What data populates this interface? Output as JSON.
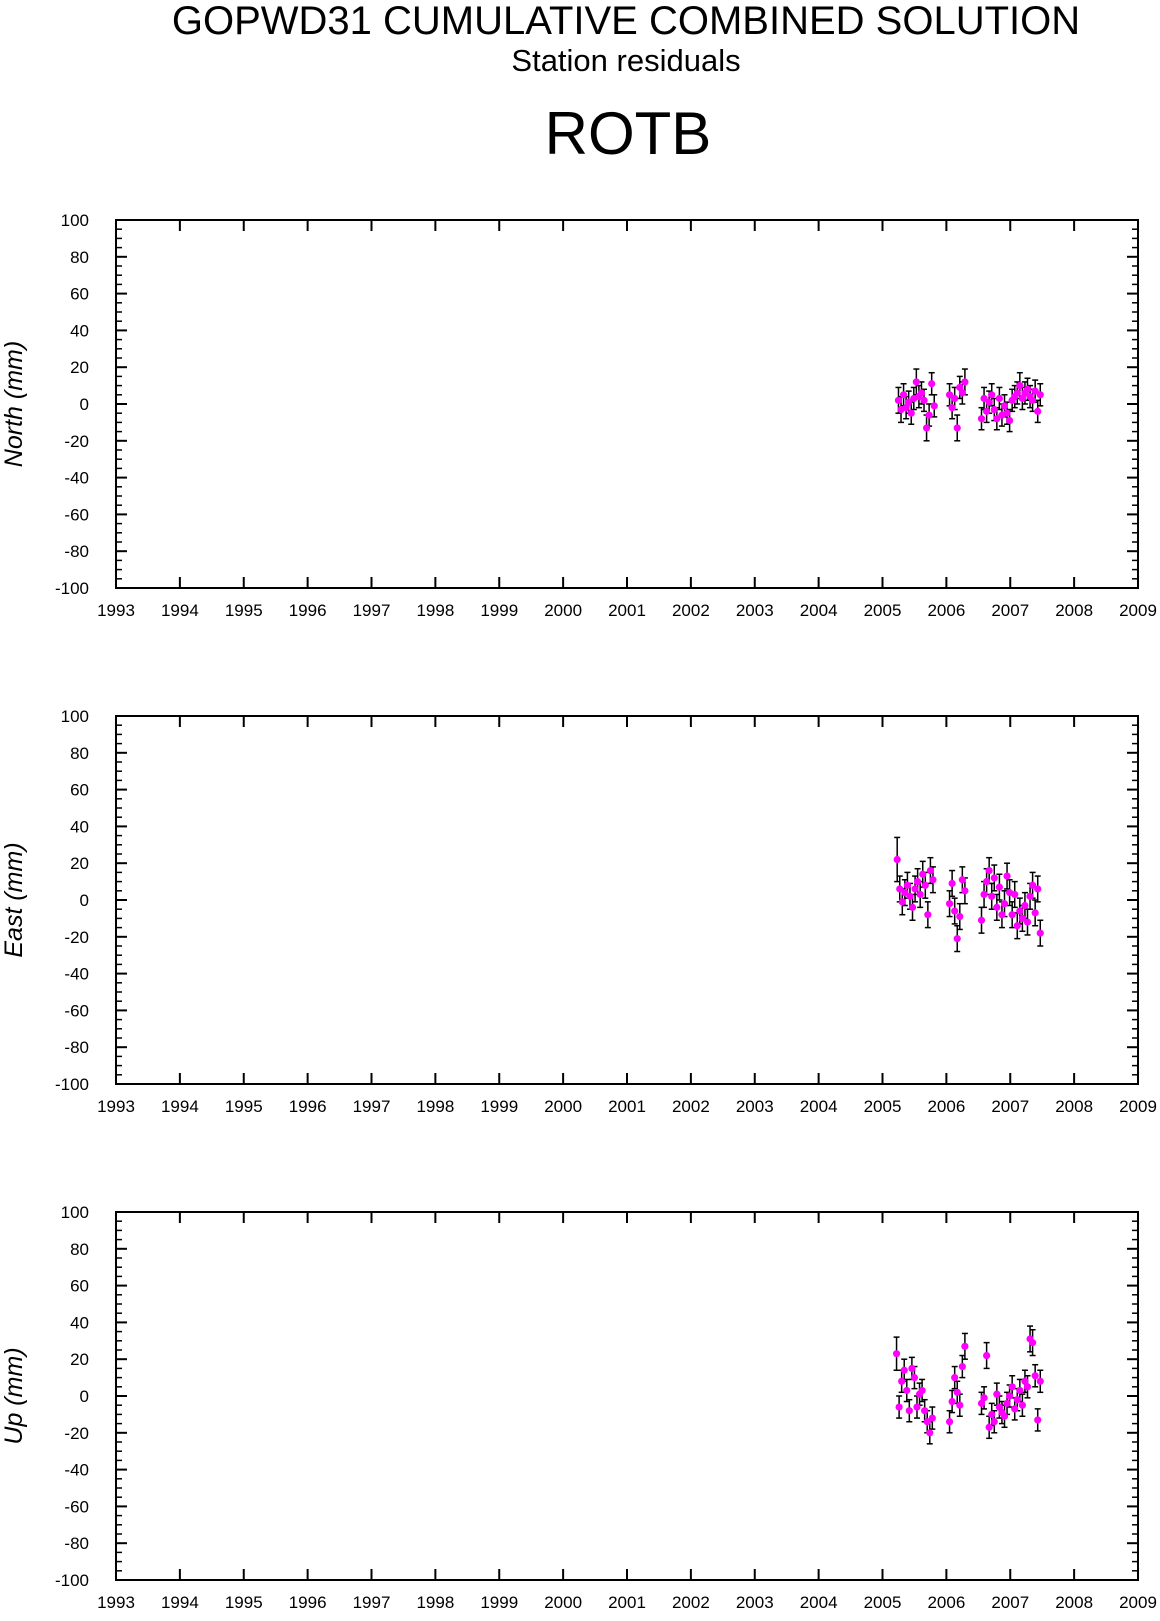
{
  "header": {
    "title": "GOPWD31 CUMULATIVE COMBINED SOLUTION",
    "subtitle": "Station residuals",
    "station": "ROTB"
  },
  "colors": {
    "point": "#ff00ff",
    "errorbar": "#000000",
    "axis": "#000000"
  },
  "chart_data": [
    {
      "type": "scatter",
      "name": "north",
      "ylabel": "North (mm)",
      "xlim": [
        1993,
        2009
      ],
      "ylim": [
        -100,
        100
      ],
      "xticks": [
        1993,
        1994,
        1995,
        1996,
        1997,
        1998,
        1999,
        2000,
        2001,
        2002,
        2003,
        2004,
        2005,
        2006,
        2007,
        2008,
        2009
      ],
      "yticks": [
        100,
        80,
        60,
        40,
        20,
        0,
        -20,
        -40,
        -60,
        -80,
        -100
      ],
      "grid": false,
      "points": [
        [
          2005.25,
          2,
          7
        ],
        [
          2005.29,
          -3,
          7
        ],
        [
          2005.33,
          5,
          6
        ],
        [
          2005.37,
          -2,
          6
        ],
        [
          2005.41,
          1,
          6
        ],
        [
          2005.45,
          -5,
          6
        ],
        [
          2005.49,
          3,
          6
        ],
        [
          2005.53,
          12,
          7
        ],
        [
          2005.57,
          4,
          6
        ],
        [
          2005.61,
          6,
          6
        ],
        [
          2005.65,
          2,
          6
        ],
        [
          2005.69,
          -13,
          7
        ],
        [
          2005.73,
          -6,
          6
        ],
        [
          2005.77,
          11,
          6
        ],
        [
          2005.81,
          -1,
          6
        ],
        [
          2006.05,
          5,
          6
        ],
        [
          2006.09,
          -2,
          6
        ],
        [
          2006.13,
          3,
          6
        ],
        [
          2006.17,
          -13,
          7
        ],
        [
          2006.21,
          9,
          6
        ],
        [
          2006.25,
          6,
          6
        ],
        [
          2006.29,
          12,
          7
        ],
        [
          2006.55,
          -8,
          6
        ],
        [
          2006.59,
          3,
          6
        ],
        [
          2006.63,
          -4,
          6
        ],
        [
          2006.67,
          1,
          6
        ],
        [
          2006.71,
          5,
          6
        ],
        [
          2006.75,
          -3,
          6
        ],
        [
          2006.79,
          -8,
          6
        ],
        [
          2006.83,
          3,
          6
        ],
        [
          2006.87,
          -6,
          6
        ],
        [
          2006.91,
          -1,
          6
        ],
        [
          2006.95,
          -5,
          6
        ],
        [
          2006.99,
          -9,
          6
        ],
        [
          2007.03,
          2,
          6
        ],
        [
          2007.07,
          4,
          6
        ],
        [
          2007.11,
          6,
          6
        ],
        [
          2007.15,
          10,
          7
        ],
        [
          2007.19,
          3,
          6
        ],
        [
          2007.23,
          6,
          6
        ],
        [
          2007.27,
          8,
          6
        ],
        [
          2007.31,
          4,
          6
        ],
        [
          2007.35,
          2,
          6
        ],
        [
          2007.39,
          7,
          6
        ],
        [
          2007.43,
          -4,
          6
        ],
        [
          2007.47,
          5,
          6
        ]
      ]
    },
    {
      "type": "scatter",
      "name": "east",
      "ylabel": "East (mm)",
      "xlim": [
        1993,
        2009
      ],
      "ylim": [
        -100,
        100
      ],
      "xticks": [
        1993,
        1994,
        1995,
        1996,
        1997,
        1998,
        1999,
        2000,
        2001,
        2002,
        2003,
        2004,
        2005,
        2006,
        2007,
        2008,
        2009
      ],
      "yticks": [
        100,
        80,
        60,
        40,
        20,
        0,
        -20,
        -40,
        -60,
        -80,
        -100
      ],
      "grid": false,
      "points": [
        [
          2005.23,
          22,
          12
        ],
        [
          2005.27,
          6,
          7
        ],
        [
          2005.31,
          -1,
          7
        ],
        [
          2005.35,
          4,
          7
        ],
        [
          2005.39,
          8,
          7
        ],
        [
          2005.43,
          2,
          7
        ],
        [
          2005.47,
          -4,
          7
        ],
        [
          2005.51,
          6,
          7
        ],
        [
          2005.55,
          10,
          7
        ],
        [
          2005.59,
          3,
          7
        ],
        [
          2005.63,
          14,
          7
        ],
        [
          2005.67,
          8,
          7
        ],
        [
          2005.71,
          -8,
          7
        ],
        [
          2005.75,
          16,
          7
        ],
        [
          2005.79,
          11,
          7
        ],
        [
          2006.05,
          -2,
          7
        ],
        [
          2006.09,
          9,
          7
        ],
        [
          2006.13,
          -6,
          7
        ],
        [
          2006.17,
          -21,
          7
        ],
        [
          2006.21,
          -9,
          7
        ],
        [
          2006.25,
          11,
          7
        ],
        [
          2006.29,
          5,
          7
        ],
        [
          2006.55,
          -11,
          7
        ],
        [
          2006.59,
          3,
          7
        ],
        [
          2006.63,
          10,
          7
        ],
        [
          2006.67,
          16,
          7
        ],
        [
          2006.71,
          2,
          7
        ],
        [
          2006.75,
          12,
          7
        ],
        [
          2006.79,
          -4,
          7
        ],
        [
          2006.83,
          7,
          7
        ],
        [
          2006.87,
          -8,
          7
        ],
        [
          2006.91,
          -2,
          7
        ],
        [
          2006.95,
          13,
          7
        ],
        [
          2006.99,
          4,
          7
        ],
        [
          2007.03,
          -8,
          7
        ],
        [
          2007.07,
          3,
          7
        ],
        [
          2007.11,
          -14,
          7
        ],
        [
          2007.15,
          -6,
          7
        ],
        [
          2007.19,
          -10,
          7
        ],
        [
          2007.23,
          -3,
          7
        ],
        [
          2007.27,
          -12,
          7
        ],
        [
          2007.31,
          2,
          7
        ],
        [
          2007.35,
          8,
          7
        ],
        [
          2007.39,
          -7,
          7
        ],
        [
          2007.43,
          6,
          7
        ],
        [
          2007.47,
          -18,
          7
        ]
      ]
    },
    {
      "type": "scatter",
      "name": "up",
      "ylabel": "Up (mm)",
      "xlim": [
        1993,
        2009
      ],
      "ylim": [
        -100,
        100
      ],
      "xticks": [
        1993,
        1994,
        1995,
        1996,
        1997,
        1998,
        1999,
        2000,
        2001,
        2002,
        2003,
        2004,
        2005,
        2006,
        2007,
        2008,
        2009
      ],
      "yticks": [
        100,
        80,
        60,
        40,
        20,
        0,
        -20,
        -40,
        -60,
        -80,
        -100
      ],
      "grid": false,
      "points": [
        [
          2005.22,
          23,
          9
        ],
        [
          2005.26,
          -6,
          6
        ],
        [
          2005.3,
          8,
          6
        ],
        [
          2005.34,
          14,
          6
        ],
        [
          2005.38,
          3,
          6
        ],
        [
          2005.42,
          -8,
          6
        ],
        [
          2005.46,
          15,
          6
        ],
        [
          2005.5,
          10,
          6
        ],
        [
          2005.54,
          -6,
          6
        ],
        [
          2005.58,
          1,
          6
        ],
        [
          2005.62,
          3,
          6
        ],
        [
          2005.66,
          -8,
          6
        ],
        [
          2005.7,
          -14,
          6
        ],
        [
          2005.74,
          -20,
          6
        ],
        [
          2005.78,
          -12,
          6
        ],
        [
          2006.05,
          -14,
          6
        ],
        [
          2006.09,
          -3,
          6
        ],
        [
          2006.13,
          10,
          6
        ],
        [
          2006.17,
          2,
          6
        ],
        [
          2006.21,
          -5,
          6
        ],
        [
          2006.25,
          16,
          6
        ],
        [
          2006.29,
          27,
          7
        ],
        [
          2006.55,
          -4,
          6
        ],
        [
          2006.59,
          -1,
          6
        ],
        [
          2006.63,
          22,
          7
        ],
        [
          2006.67,
          -17,
          6
        ],
        [
          2006.71,
          -10,
          6
        ],
        [
          2006.75,
          -14,
          6
        ],
        [
          2006.79,
          1,
          6
        ],
        [
          2006.83,
          -6,
          6
        ],
        [
          2006.87,
          -9,
          6
        ],
        [
          2006.91,
          -11,
          6
        ],
        [
          2006.95,
          -4,
          6
        ],
        [
          2006.99,
          0,
          6
        ],
        [
          2007.03,
          5,
          6
        ],
        [
          2007.07,
          -7,
          6
        ],
        [
          2007.11,
          -2,
          6
        ],
        [
          2007.15,
          3,
          6
        ],
        [
          2007.19,
          -5,
          6
        ],
        [
          2007.23,
          8,
          6
        ],
        [
          2007.27,
          5,
          6
        ],
        [
          2007.31,
          31,
          7
        ],
        [
          2007.35,
          29,
          7
        ],
        [
          2007.39,
          11,
          6
        ],
        [
          2007.43,
          -13,
          6
        ],
        [
          2007.47,
          8,
          6
        ]
      ]
    }
  ]
}
